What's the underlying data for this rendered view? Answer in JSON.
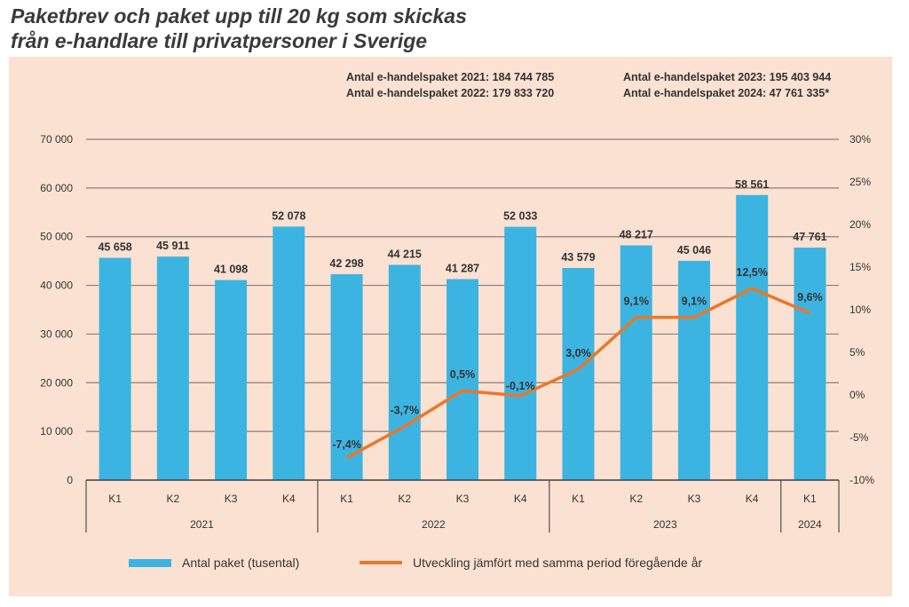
{
  "title": [
    "Paketbrev och paket upp till 20 kg som skickas",
    "från e-handlare till privatpersoner i Sverige"
  ],
  "totals": [
    "Antal e-handelspaket 2021: 184 744 785",
    "Antal e-handelspaket 2022: 179 833 720",
    "Antal e-handelspaket 2023: 195 403 944",
    "Antal e-handelspaket 2024: 47 761 335*"
  ],
  "chart_data": {
    "type": "bar",
    "categories": [
      "K1",
      "K2",
      "K3",
      "K4",
      "K1",
      "K2",
      "K3",
      "K4",
      "K1",
      "K2",
      "K3",
      "K4",
      "K1"
    ],
    "years": [
      {
        "label": "2021",
        "count": 4
      },
      {
        "label": "2022",
        "count": 4
      },
      {
        "label": "2023",
        "count": 4
      },
      {
        "label": "2024",
        "count": 1
      }
    ],
    "series": [
      {
        "name": "Antal paket (tusental)",
        "type": "bar",
        "axis": "left",
        "color": "#3cb4e1",
        "values": [
          45658,
          45911,
          41098,
          52078,
          42298,
          44215,
          41287,
          52033,
          43579,
          48217,
          45046,
          58561,
          47761
        ],
        "labels": [
          "45 658",
          "45 911",
          "41 098",
          "52 078",
          "42 298",
          "44 215",
          "41 287",
          "52 033",
          "43 579",
          "48 217",
          "45 046",
          "58 561",
          "47 761"
        ]
      },
      {
        "name": "Utveckling jämfört med samma period föregående år",
        "type": "line",
        "axis": "right",
        "color": "#e8782a",
        "values": [
          null,
          null,
          null,
          null,
          -7.4,
          -3.7,
          0.5,
          -0.1,
          3.0,
          9.1,
          9.1,
          12.5,
          9.6
        ],
        "labels": [
          null,
          null,
          null,
          null,
          "-7,4%",
          "-3,7%",
          "0,5%",
          "-0,1%",
          "3,0%",
          "9,1%",
          "9,1%",
          "12,5%",
          "9,6%"
        ]
      }
    ],
    "ylim": [
      0,
      70000
    ],
    "yticks": [
      "0",
      "10 000",
      "20 000",
      "30 000",
      "40 000",
      "50 000",
      "60 000",
      "70 000"
    ],
    "y2lim": [
      -10,
      30
    ],
    "y2ticks": [
      "-10%",
      "-5%",
      "0%",
      "5%",
      "10%",
      "15%",
      "20%",
      "25%",
      "30%"
    ],
    "grid": true,
    "legend": "bottom"
  }
}
